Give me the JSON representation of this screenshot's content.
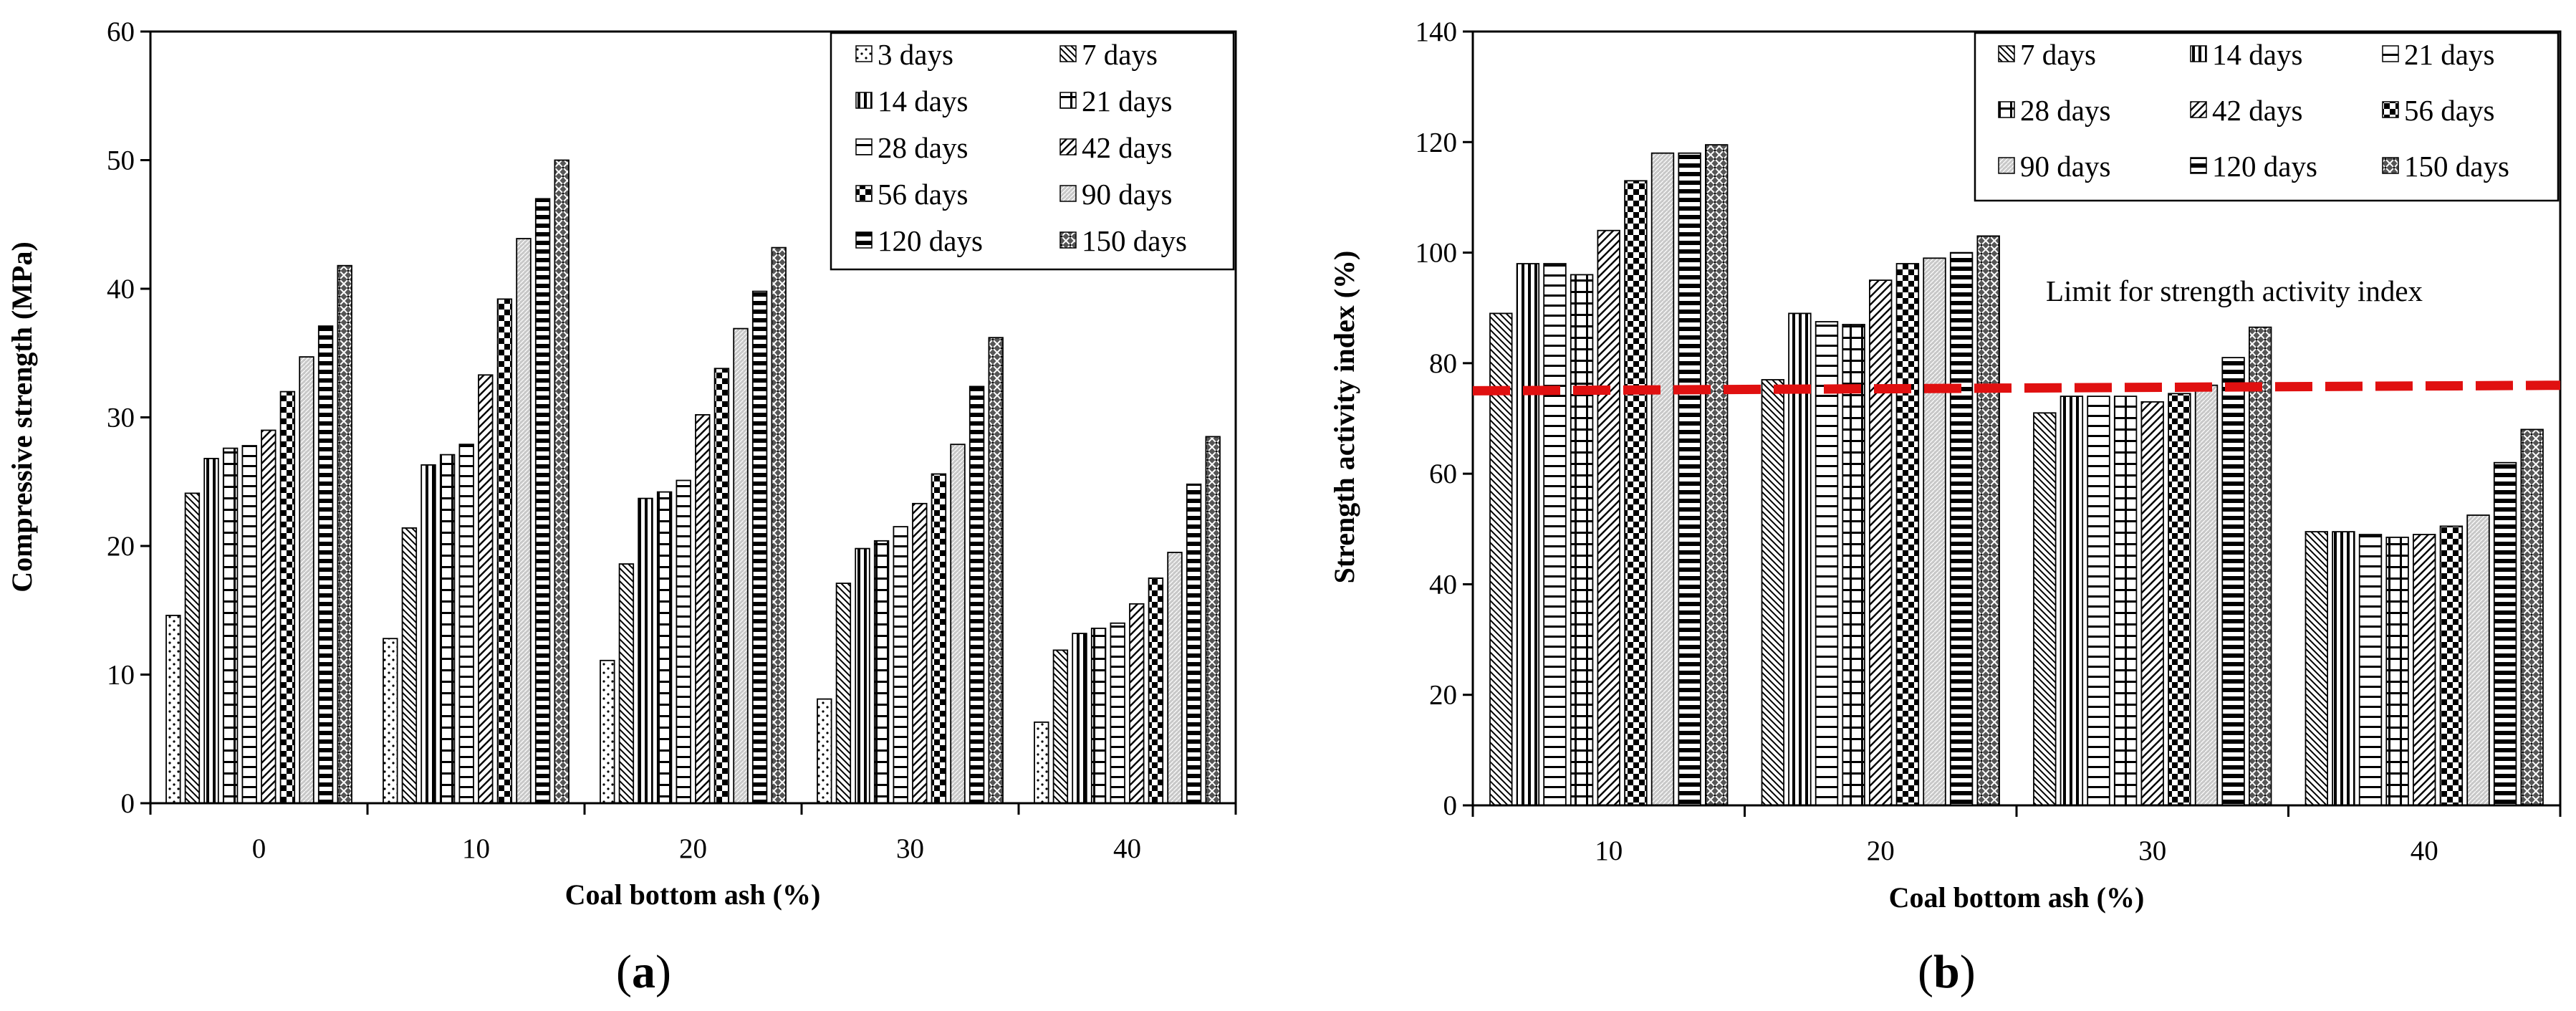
{
  "chart_data": [
    {
      "type": "bar",
      "panel_label": "a",
      "title": "",
      "xlabel": "Coal bottom ash (%)",
      "ylabel": "Compressive strength (MPa)",
      "ylim": [
        0,
        60
      ],
      "yticks": [
        "0",
        "10",
        "20",
        "30",
        "40",
        "50",
        "60"
      ],
      "categories": [
        "0",
        "10",
        "20",
        "30",
        "40"
      ],
      "legend_position": "top-right",
      "series": [
        {
          "name": "3 days",
          "pattern": "dots",
          "values": [
            14.6,
            12.8,
            11.1,
            8.1,
            6.3
          ]
        },
        {
          "name": "7 days",
          "pattern": "diag-down",
          "values": [
            24.1,
            21.4,
            18.6,
            17.1,
            11.9
          ]
        },
        {
          "name": "14 days",
          "pattern": "vert",
          "values": [
            26.8,
            26.3,
            23.7,
            19.8,
            13.2
          ]
        },
        {
          "name": "21 days",
          "pattern": "cross",
          "values": [
            27.6,
            27.1,
            24.2,
            20.4,
            13.6
          ]
        },
        {
          "name": "28 days",
          "pattern": "horiz",
          "values": [
            27.8,
            27.9,
            25.1,
            21.5,
            14.0
          ]
        },
        {
          "name": "42 days",
          "pattern": "diag-up",
          "values": [
            29.0,
            33.3,
            30.2,
            23.3,
            15.5
          ]
        },
        {
          "name": "56 days",
          "pattern": "checker",
          "values": [
            32.0,
            39.2,
            33.8,
            25.6,
            17.5
          ]
        },
        {
          "name": "90 days",
          "pattern": "fine-diag",
          "values": [
            34.7,
            43.9,
            36.9,
            27.9,
            19.5
          ]
        },
        {
          "name": "120 days",
          "pattern": "hbar",
          "values": [
            37.1,
            47.0,
            39.8,
            32.4,
            24.8
          ]
        },
        {
          "name": "150 days",
          "pattern": "xcross",
          "values": [
            41.8,
            50.0,
            43.2,
            36.2,
            28.5
          ]
        }
      ]
    },
    {
      "type": "bar",
      "panel_label": "b",
      "title": "",
      "xlabel": "Coal bottom ash (%)",
      "ylabel": "Strength activity index (%)",
      "ylim": [
        0,
        140
      ],
      "yticks": [
        "0",
        "20",
        "40",
        "60",
        "80",
        "100",
        "120",
        "140"
      ],
      "categories": [
        "10",
        "20",
        "30",
        "40"
      ],
      "legend_position": "top-right",
      "series": [
        {
          "name": "7 days",
          "pattern": "diag-down",
          "values": [
            89,
            77,
            71,
            49.5
          ]
        },
        {
          "name": "14 days",
          "pattern": "vert",
          "values": [
            98,
            89,
            74,
            49.5
          ]
        },
        {
          "name": "21 days",
          "pattern": "horiz",
          "values": [
            98,
            87.5,
            74,
            49
          ]
        },
        {
          "name": "28 days",
          "pattern": "cross",
          "values": [
            96,
            87,
            74,
            48.5
          ]
        },
        {
          "name": "42 days",
          "pattern": "diag-up",
          "values": [
            104,
            95,
            73,
            49
          ]
        },
        {
          "name": "56 days",
          "pattern": "checker",
          "values": [
            113,
            98,
            74.5,
            50.5
          ]
        },
        {
          "name": "90 days",
          "pattern": "fine-diag",
          "values": [
            118,
            99,
            76,
            52.5
          ]
        },
        {
          "name": "120 days",
          "pattern": "hbar",
          "values": [
            118,
            100,
            81,
            62
          ]
        },
        {
          "name": "150 days",
          "pattern": "xcross",
          "values": [
            119.5,
            103,
            86.5,
            68
          ]
        }
      ],
      "reference_line": {
        "label": "Limit for strength activity index",
        "y_start": 75,
        "y_end": 76,
        "color": "#e01010"
      }
    }
  ]
}
